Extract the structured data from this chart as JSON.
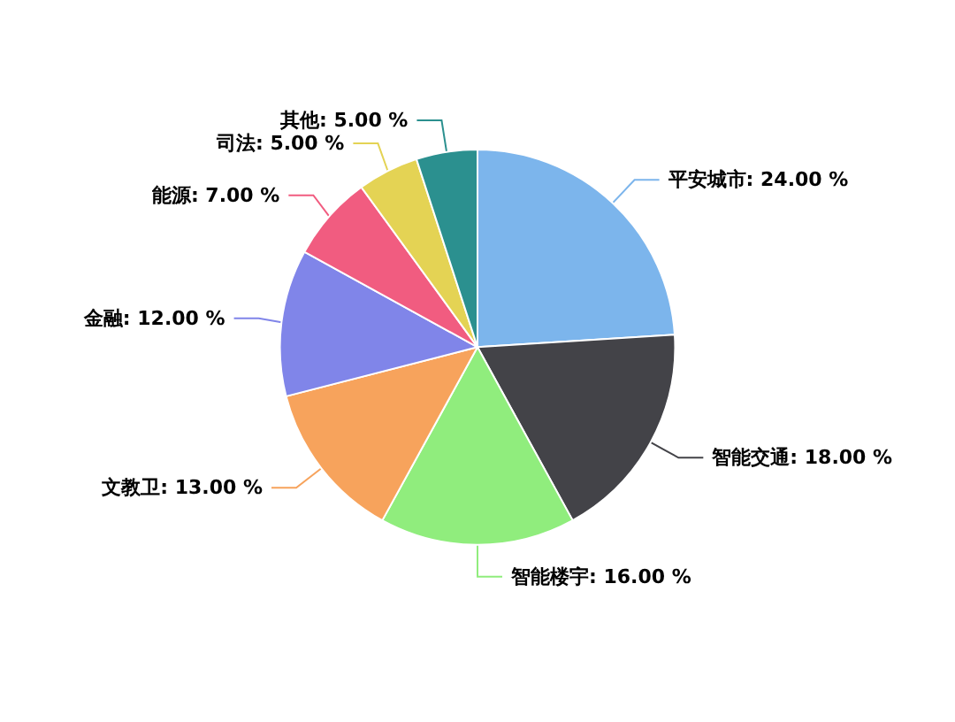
{
  "chart_data": {
    "type": "pie",
    "categories": [
      "平安城市",
      "智能交通",
      "智能楼宇",
      "文教卫",
      "金融",
      "能源",
      "司法",
      "其他"
    ],
    "values": [
      24,
      18,
      16,
      13,
      12,
      7,
      5,
      5
    ],
    "colors": [
      "#7cb5ec",
      "#434348",
      "#90ed7d",
      "#f7a35c",
      "#8085e9",
      "#f15c80",
      "#e4d354",
      "#2b908f"
    ],
    "value_labels": [
      "24.00 %",
      "18.00 %",
      "16.00 %",
      "13.00 %",
      "12.00 %",
      "7.00 %",
      "5.00 %",
      "5.00 %"
    ],
    "legend": false
  }
}
